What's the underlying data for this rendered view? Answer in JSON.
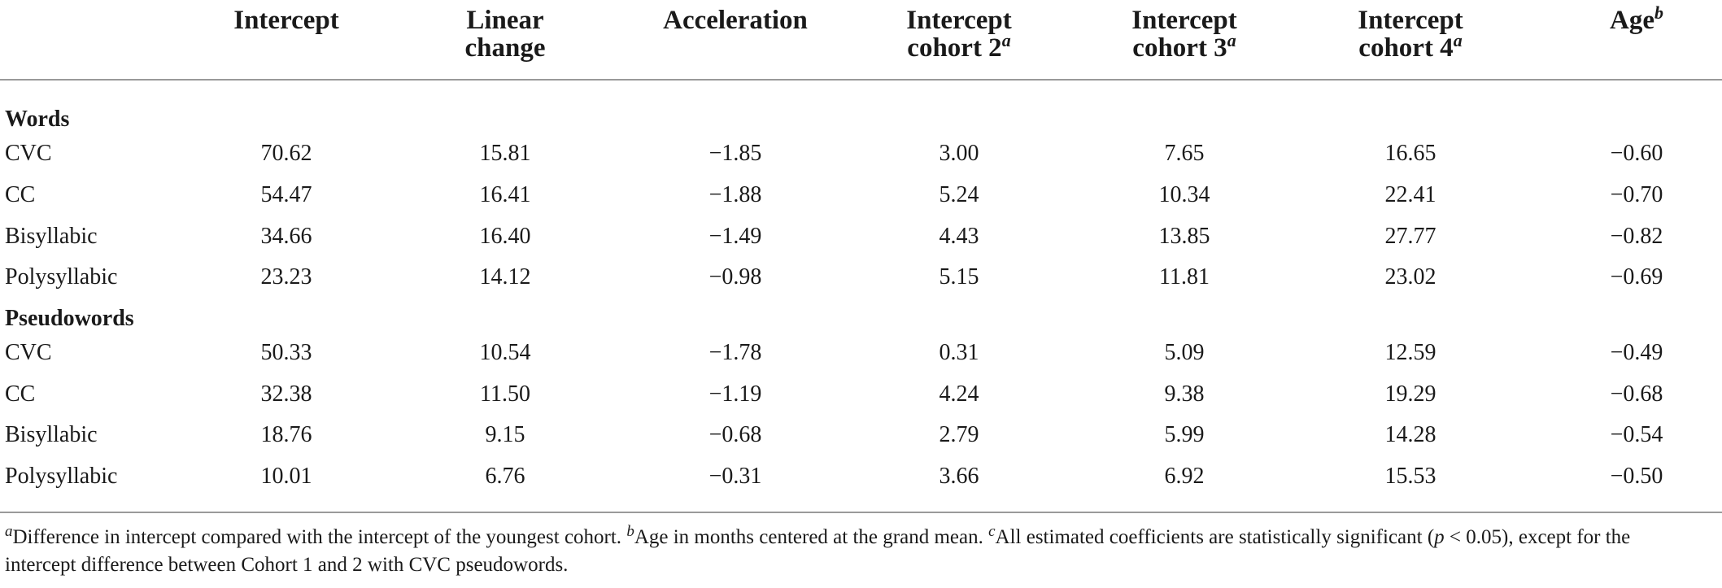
{
  "headers": [
    {
      "line1": "Intercept",
      "line2": "",
      "sup": ""
    },
    {
      "line1": "Linear",
      "line2": "change",
      "sup": ""
    },
    {
      "line1": "Acceleration",
      "line2": "",
      "sup": ""
    },
    {
      "line1": "Intercept",
      "line2": "cohort 2",
      "sup": "a"
    },
    {
      "line1": "Intercept",
      "line2": "cohort 3",
      "sup": "a"
    },
    {
      "line1": "Intercept",
      "line2": "cohort 4",
      "sup": "a"
    },
    {
      "line1": "Age",
      "line2": "",
      "sup": "b"
    }
  ],
  "sections": [
    {
      "title": "Words",
      "rows": [
        {
          "label": "CVC",
          "values": [
            "70.62",
            "15.81",
            "−1.85",
            "3.00",
            "7.65",
            "16.65",
            "−0.60"
          ]
        },
        {
          "label": "CC",
          "values": [
            "54.47",
            "16.41",
            "−1.88",
            "5.24",
            "10.34",
            "22.41",
            "−0.70"
          ]
        },
        {
          "label": "Bisyllabic",
          "values": [
            "34.66",
            "16.40",
            "−1.49",
            "4.43",
            "13.85",
            "27.77",
            "−0.82"
          ]
        },
        {
          "label": "Polysyllabic",
          "values": [
            "23.23",
            "14.12",
            "−0.98",
            "5.15",
            "11.81",
            "23.02",
            "−0.69"
          ]
        }
      ]
    },
    {
      "title": "Pseudowords",
      "rows": [
        {
          "label": "CVC",
          "values": [
            "50.33",
            "10.54",
            "−1.78",
            "0.31",
            "5.09",
            "12.59",
            "−0.49"
          ]
        },
        {
          "label": "CC",
          "values": [
            "32.38",
            "11.50",
            "−1.19",
            "4.24",
            "9.38",
            "19.29",
            "−0.68"
          ]
        },
        {
          "label": "Bisyllabic",
          "values": [
            "18.76",
            "9.15",
            "−0.68",
            "2.79",
            "5.99",
            "14.28",
            "−0.54"
          ]
        },
        {
          "label": "Polysyllabic",
          "values": [
            "10.01",
            "6.76",
            "−0.31",
            "3.66",
            "6.92",
            "15.53",
            "−0.50"
          ]
        }
      ]
    }
  ],
  "footnote": {
    "a_sup": "a",
    "a_text": "Difference in intercept compared with the intercept of the youngest cohort. ",
    "b_sup": "b",
    "b_text": "Age in months centered at the grand mean. ",
    "c_sup": "c",
    "c_text_1": "All estimated coefficients are statistically significant (",
    "c_p": "p",
    "c_text_2": " < 0.05), except for the intercept difference between Cohort 1 and 2 with CVC pseudowords."
  }
}
